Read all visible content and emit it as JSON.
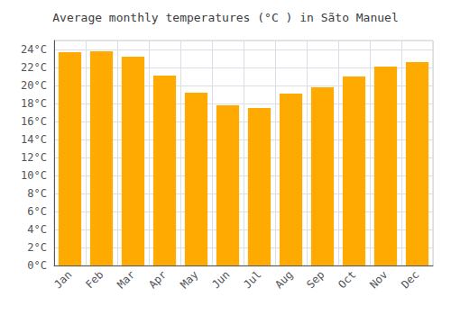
{
  "chart_data": {
    "type": "bar",
    "title": "Average monthly temperatures (°C ) in Sãto Manuel",
    "categories": [
      "Jan",
      "Feb",
      "Mar",
      "Apr",
      "May",
      "Jun",
      "Jul",
      "Aug",
      "Sep",
      "Oct",
      "Nov",
      "Dec"
    ],
    "values": [
      23.7,
      23.8,
      23.2,
      21.1,
      19.2,
      17.8,
      17.5,
      19.1,
      19.8,
      21.0,
      22.1,
      22.6
    ],
    "color": "#FFAA00",
    "ylim": [
      0,
      25
    ],
    "yticks": [
      {
        "value": 0,
        "label": "0°C"
      },
      {
        "value": 2,
        "label": "2°C"
      },
      {
        "value": 4,
        "label": "4°C"
      },
      {
        "value": 6,
        "label": "6°C"
      },
      {
        "value": 8,
        "label": "8°C"
      },
      {
        "value": 10,
        "label": "10°C"
      },
      {
        "value": 12,
        "label": "12°C"
      },
      {
        "value": 14,
        "label": "14°C"
      },
      {
        "value": 16,
        "label": "16°C"
      },
      {
        "value": 18,
        "label": "18°C"
      },
      {
        "value": 20,
        "label": "20°C"
      },
      {
        "value": 22,
        "label": "22°C"
      },
      {
        "value": 24,
        "label": "24°C"
      }
    ],
    "grid": true
  }
}
